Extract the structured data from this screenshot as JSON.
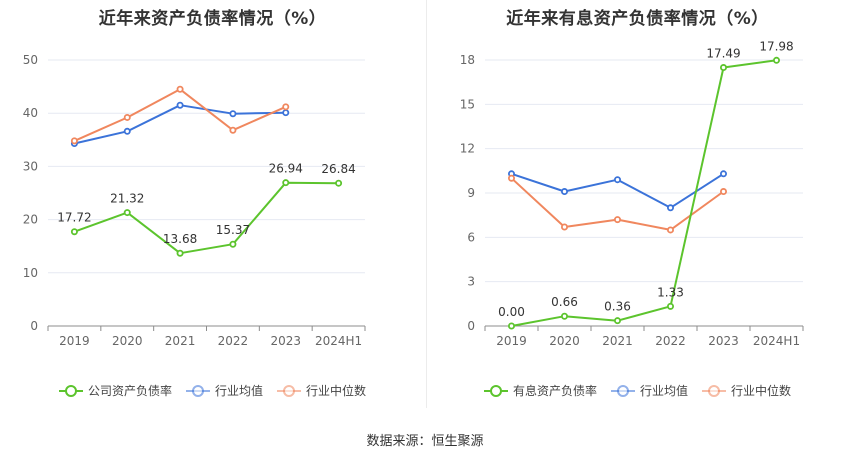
{
  "source_text": "数据来源：恒生聚源",
  "chart_data": [
    {
      "type": "line",
      "title": "近年来资产负债率情况（%）",
      "categories": [
        "2019",
        "2020",
        "2021",
        "2022",
        "2023",
        "2024H1"
      ],
      "ylim": [
        0,
        50
      ],
      "yticks": [
        0,
        10,
        20,
        30,
        40,
        50
      ],
      "grid": true,
      "legend_position": "bottom",
      "series": [
        {
          "name": "公司资产负债率",
          "color": "#5cc42d",
          "values": [
            17.72,
            21.32,
            13.68,
            15.37,
            26.94,
            26.84
          ],
          "labels": [
            "17.72",
            "21.32",
            "13.68",
            "15.37",
            "26.94",
            "26.84"
          ]
        },
        {
          "name": "行业均值",
          "color": "#3b73d9",
          "values": [
            34.3,
            36.6,
            41.5,
            39.9,
            40.1,
            null
          ],
          "labels": []
        },
        {
          "name": "行业中位数",
          "color": "#f0875e",
          "values": [
            34.8,
            39.2,
            44.5,
            36.8,
            41.2,
            null
          ],
          "labels": []
        }
      ]
    },
    {
      "type": "line",
      "title": "近年来有息资产负债率情况（%）",
      "categories": [
        "2019",
        "2020",
        "2021",
        "2022",
        "2023",
        "2024H1"
      ],
      "ylim": [
        0,
        18
      ],
      "yticks": [
        0,
        3,
        6,
        9,
        12,
        15,
        18
      ],
      "grid": true,
      "legend_position": "bottom",
      "series": [
        {
          "name": "有息资产负债率",
          "color": "#5cc42d",
          "values": [
            0.0,
            0.66,
            0.36,
            1.33,
            17.49,
            17.98
          ],
          "labels": [
            "0.00",
            "0.66",
            "0.36",
            "1.33",
            "17.49",
            "17.98"
          ]
        },
        {
          "name": "行业均值",
          "color": "#3b73d9",
          "values": [
            10.3,
            9.1,
            9.9,
            8.0,
            10.3,
            null
          ],
          "labels": []
        },
        {
          "name": "行业中位数",
          "color": "#f0875e",
          "values": [
            10.0,
            6.7,
            7.2,
            6.5,
            9.1,
            null
          ],
          "labels": []
        }
      ]
    }
  ]
}
